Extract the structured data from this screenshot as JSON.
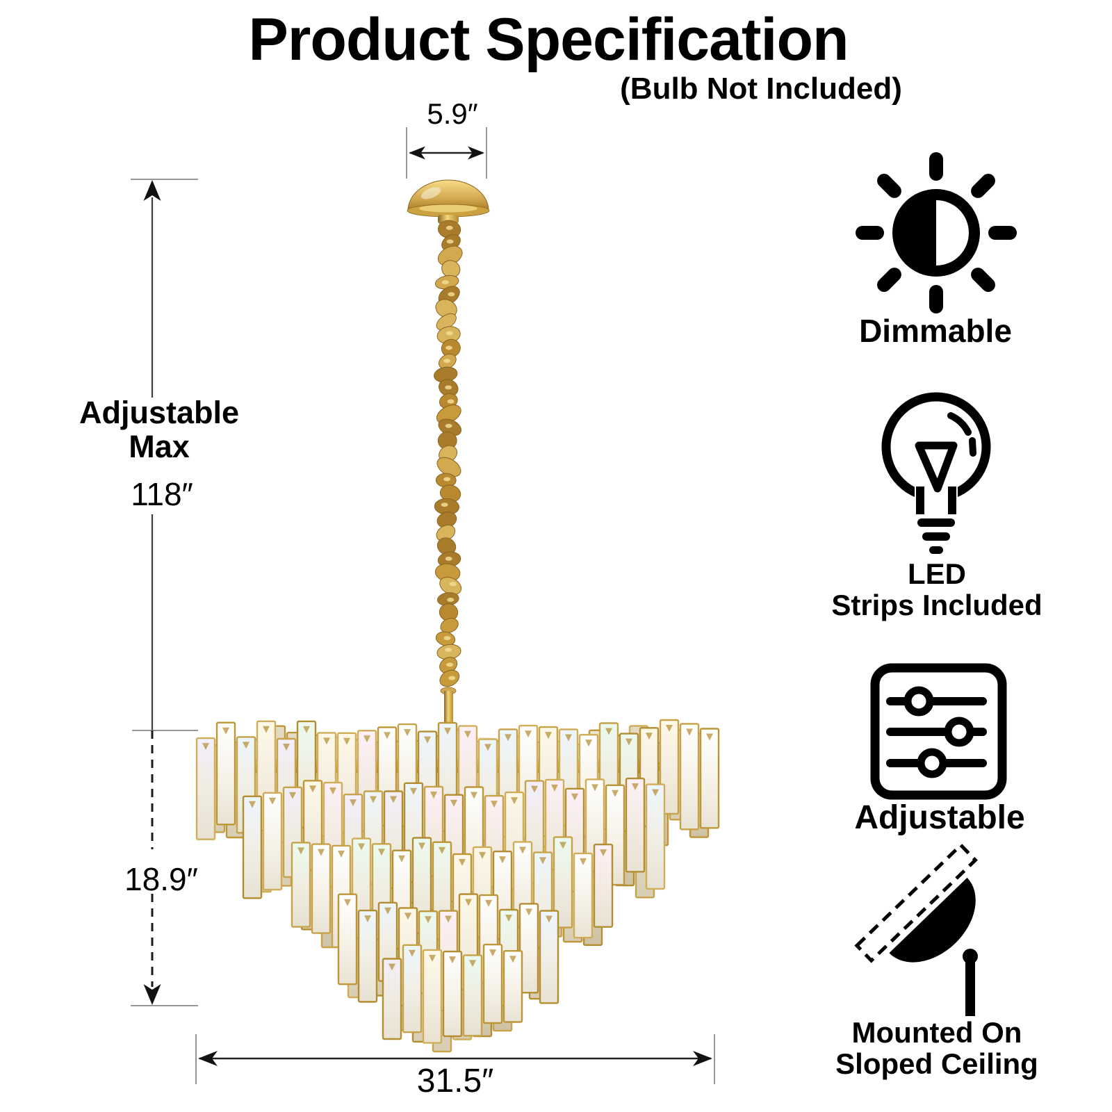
{
  "header": {
    "title": "Product Specification",
    "subtitle": "(Bulb Not Included)"
  },
  "dimensions": {
    "canopy_width": "5.9″",
    "adjustable_line1": "Adjustable",
    "adjustable_line2": "Max",
    "max_height": "118″",
    "body_height": "18.9″",
    "body_width": "31.5″"
  },
  "features": [
    {
      "icon": "brightness-sun-icon",
      "label": "Dimmable"
    },
    {
      "icon": "led-bulb-icon",
      "line1": "LED",
      "line2": "Strips Included"
    },
    {
      "icon": "sliders-icon",
      "label": "Adjustable"
    },
    {
      "icon": "sloped-ceiling-mount-icon",
      "line1": "Mounted On",
      "line2": "Sloped Ceiling"
    }
  ],
  "colors": {
    "gold": "#c79a3b",
    "gold_dark": "#8a6420",
    "gold_light": "#f3d57a",
    "frame_gold": "#c6a249",
    "tick_gray": "#979797",
    "line_dark": "#3c3c3c",
    "ink": "#111111"
  }
}
